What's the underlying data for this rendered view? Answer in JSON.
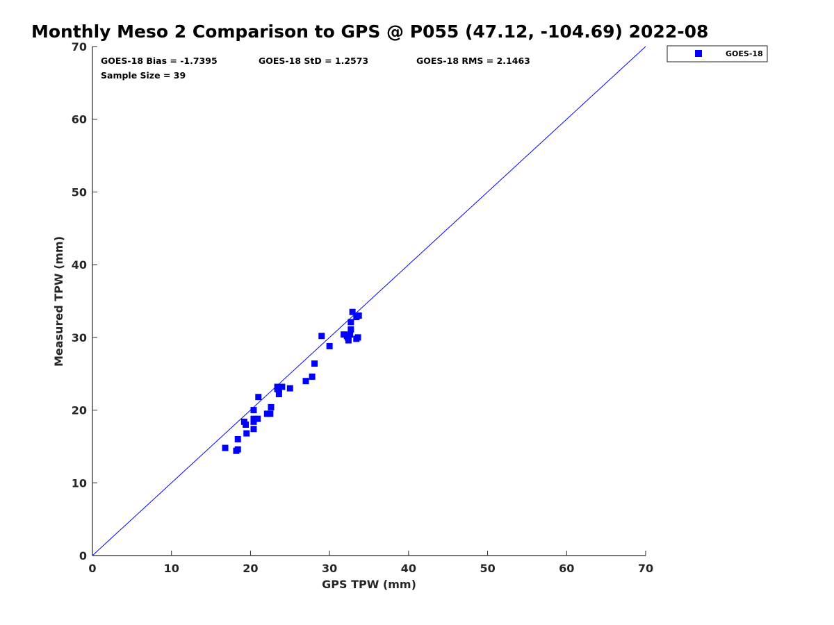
{
  "colors": {
    "series": "#0000ff",
    "axis": "#262626",
    "reference_line": "#0000ff"
  },
  "chart_data": {
    "type": "scatter",
    "title": "Monthly Meso 2 Comparison to GPS @ P055 (47.12, -104.69) 2022-08",
    "xlabel": "GPS TPW (mm)",
    "ylabel": "Measured TPW (mm)",
    "xlim": [
      0,
      70
    ],
    "ylim": [
      0,
      70
    ],
    "xticks": [
      "0",
      "10",
      "20",
      "30",
      "40",
      "50",
      "60",
      "70"
    ],
    "yticks": [
      "0",
      "10",
      "20",
      "30",
      "40",
      "50",
      "60",
      "70"
    ],
    "grid": false,
    "legend_placement": "outside-top-right",
    "reference_line": {
      "type": "1:1",
      "from": [
        0,
        0
      ],
      "to": [
        70,
        70
      ]
    },
    "annotations": {
      "bias": "GOES-18 Bias = -1.7395",
      "std": "GOES-18 StD = 1.2573",
      "rms": "GOES-18 RMS = 2.1463",
      "sample": "Sample Size = 39"
    },
    "series": [
      {
        "name": "GOES-18",
        "marker": "square",
        "points": [
          [
            16.8,
            14.8
          ],
          [
            18.2,
            14.4
          ],
          [
            18.4,
            14.6
          ],
          [
            18.4,
            16.0
          ],
          [
            19.2,
            18.4
          ],
          [
            19.4,
            18.0
          ],
          [
            19.5,
            16.8
          ],
          [
            20.4,
            17.4
          ],
          [
            20.4,
            18.4
          ],
          [
            20.4,
            18.8
          ],
          [
            20.4,
            20.0
          ],
          [
            20.9,
            18.8
          ],
          [
            21.0,
            21.8
          ],
          [
            22.1,
            19.5
          ],
          [
            22.5,
            19.5
          ],
          [
            22.6,
            20.4
          ],
          [
            23.4,
            23.2
          ],
          [
            23.6,
            22.2
          ],
          [
            23.6,
            22.8
          ],
          [
            24.0,
            23.2
          ],
          [
            25.0,
            23.0
          ],
          [
            27.0,
            24.0
          ],
          [
            27.8,
            24.6
          ],
          [
            28.1,
            26.4
          ],
          [
            29.0,
            30.2
          ],
          [
            30.0,
            28.8
          ],
          [
            31.8,
            30.4
          ],
          [
            32.2,
            30.2
          ],
          [
            32.4,
            29.6
          ],
          [
            32.6,
            30.4
          ],
          [
            32.7,
            31.1
          ],
          [
            32.7,
            32.1
          ],
          [
            32.9,
            33.5
          ],
          [
            33.4,
            29.8
          ],
          [
            33.6,
            30.0
          ],
          [
            33.4,
            32.8
          ],
          [
            33.7,
            33.0
          ],
          [
            32.3,
            30.0
          ],
          [
            23.4,
            22.9
          ]
        ]
      }
    ]
  }
}
